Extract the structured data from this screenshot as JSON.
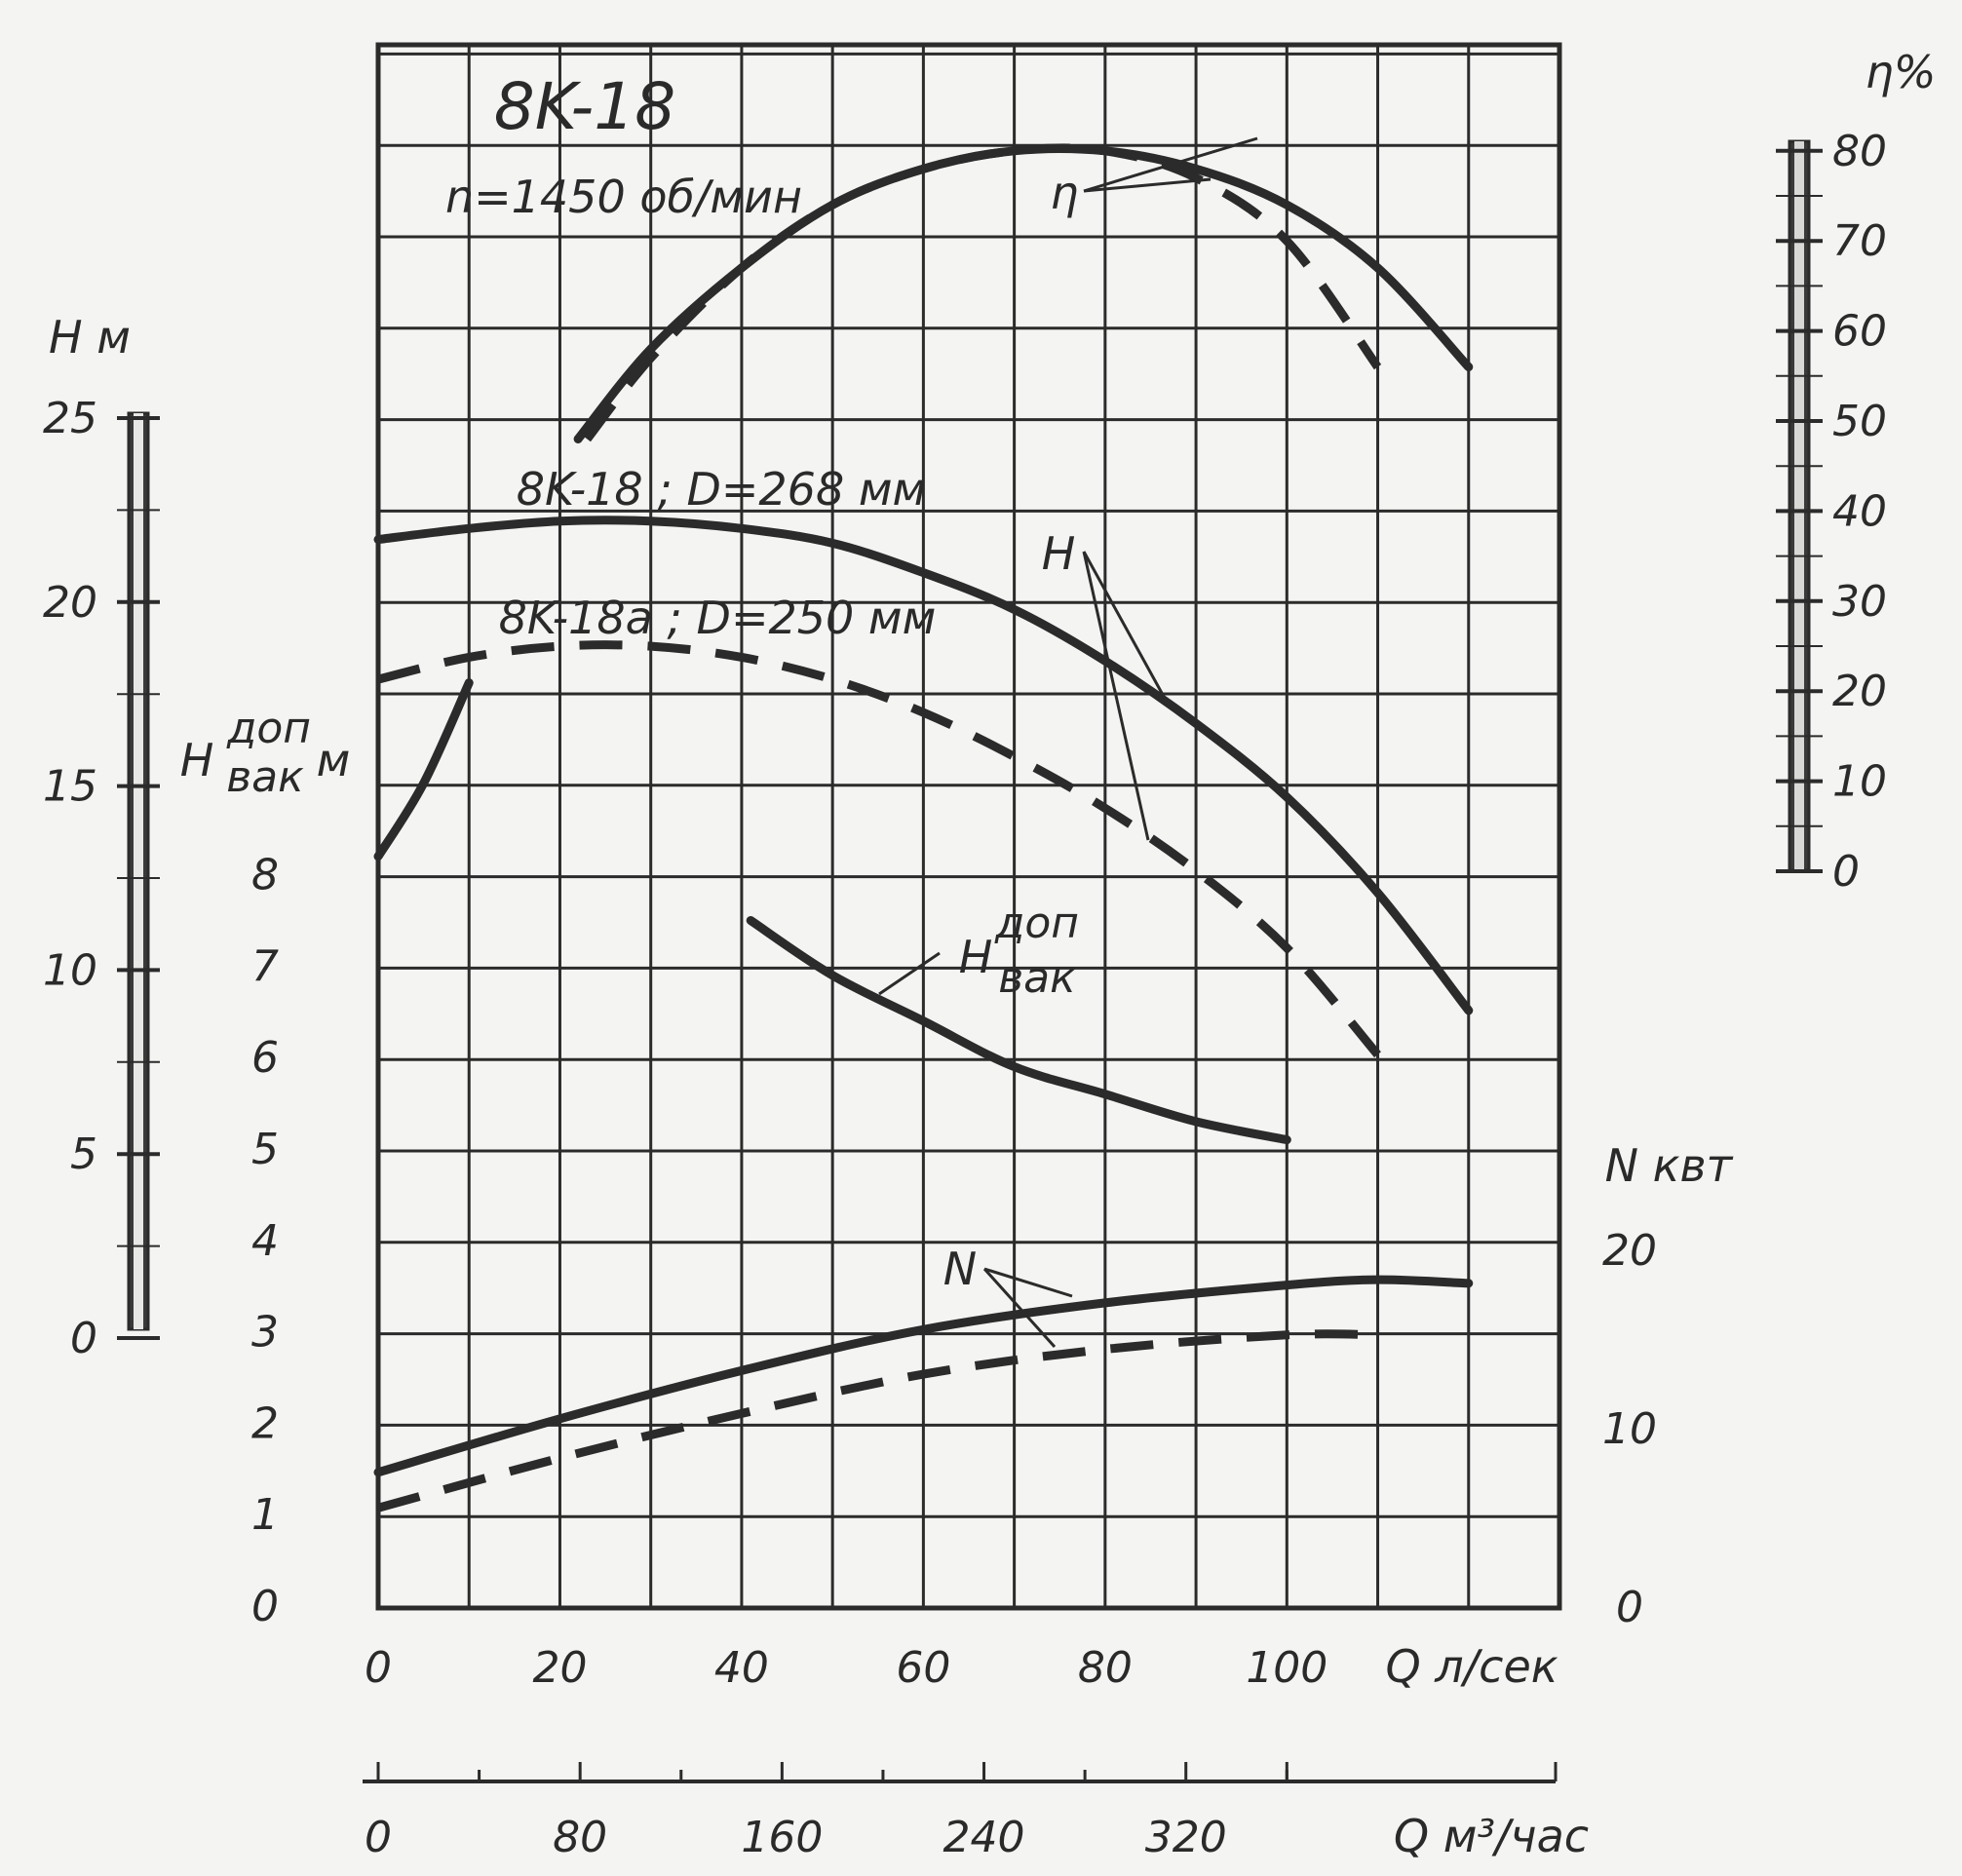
{
  "chart_data": {
    "type": "line",
    "title": "8K-18",
    "subtitle": "n=1450 об/мин",
    "x_axis": {
      "label": "Q л/сек",
      "range": [
        0,
        130
      ],
      "ticks": [
        0,
        20,
        40,
        60,
        80,
        100
      ],
      "secondary_label": "Q м³/час",
      "secondary_ticks": [
        0,
        80,
        160,
        240,
        320
      ]
    },
    "y_axes": {
      "head": {
        "label": "H м",
        "range": [
          0,
          25
        ],
        "ticks": [
          0,
          5,
          10,
          15,
          20,
          25
        ]
      },
      "vacuum": {
        "label_main": "H",
        "label_sup": "доп",
        "label_sub": "вак",
        "label_unit": "м",
        "range": [
          0,
          9
        ],
        "ticks": [
          0,
          1,
          2,
          3,
          4,
          5,
          6,
          7,
          8
        ]
      },
      "efficiency": {
        "label": "η%",
        "range": [
          0,
          80
        ],
        "ticks": [
          0,
          10,
          20,
          30,
          40,
          50,
          60,
          70,
          80
        ]
      },
      "power": {
        "label": "N квт",
        "range": [
          0,
          40
        ],
        "ticks": [
          0,
          10,
          20
        ]
      }
    },
    "grid": true,
    "series_labels": {
      "eff": "η",
      "head": "H",
      "power": "N",
      "vac_main": "H",
      "vac_sup": "доп",
      "vac_sub": "вак",
      "pump_a": "8K-18 ; D=268 мм",
      "pump_b": "8K-18a ; D=250 мм"
    },
    "series": [
      {
        "key": "head_a",
        "axis": "head",
        "style": "solid",
        "x": [
          0,
          10,
          20,
          30,
          40,
          50,
          60,
          70,
          80,
          90,
          100,
          110,
          120
        ],
        "y": [
          21.7,
          22.0,
          22.2,
          22.2,
          22.0,
          21.6,
          20.8,
          19.8,
          18.4,
          16.7,
          14.7,
          12.1,
          8.9
        ]
      },
      {
        "key": "head_b",
        "axis": "head",
        "style": "dashed",
        "x": [
          0,
          10,
          20,
          30,
          40,
          50,
          60,
          70,
          80,
          90,
          100,
          110
        ],
        "y": [
          17.9,
          18.5,
          18.8,
          18.8,
          18.5,
          17.9,
          17.0,
          15.8,
          14.4,
          12.7,
          10.6,
          7.7
        ]
      },
      {
        "key": "eff_a",
        "axis": "efficiency",
        "style": "solid",
        "x": [
          22,
          30,
          40,
          50,
          60,
          70,
          80,
          90,
          100,
          110,
          120
        ],
        "y": [
          48,
          58,
          67,
          74,
          78,
          80,
          80,
          78,
          74,
          67,
          56
        ]
      },
      {
        "key": "eff_b",
        "axis": "efficiency",
        "style": "dashed",
        "x": [
          23,
          30,
          40,
          50,
          60,
          70,
          80,
          90,
          100,
          110
        ],
        "y": [
          48,
          57,
          67,
          74,
          78,
          80,
          80,
          77,
          70,
          56
        ]
      },
      {
        "key": "power_a",
        "axis": "power",
        "style": "solid",
        "x": [
          0,
          20,
          40,
          60,
          80,
          100,
          110,
          120
        ],
        "y": [
          7.5,
          10.5,
          13.2,
          15.5,
          17.0,
          18.0,
          18.3,
          18.1
        ]
      },
      {
        "key": "power_b",
        "axis": "power",
        "style": "dashed",
        "x": [
          0,
          20,
          40,
          60,
          80,
          100,
          110
        ],
        "y": [
          5.5,
          8.3,
          10.8,
          13.0,
          14.4,
          15.2,
          15.2
        ]
      },
      {
        "key": "vac",
        "axis": "vacuum",
        "style": "solid",
        "x": [
          41,
          50,
          60,
          70,
          80,
          90,
          100
        ],
        "y": [
          7.5,
          6.9,
          6.4,
          5.9,
          5.6,
          5.3,
          5.1
        ]
      },
      {
        "key": "vac_shutoff",
        "axis": "vacuum",
        "style": "solid",
        "x": [
          0,
          5,
          10
        ],
        "y": [
          8.2,
          9.0,
          10.1
        ]
      }
    ]
  }
}
